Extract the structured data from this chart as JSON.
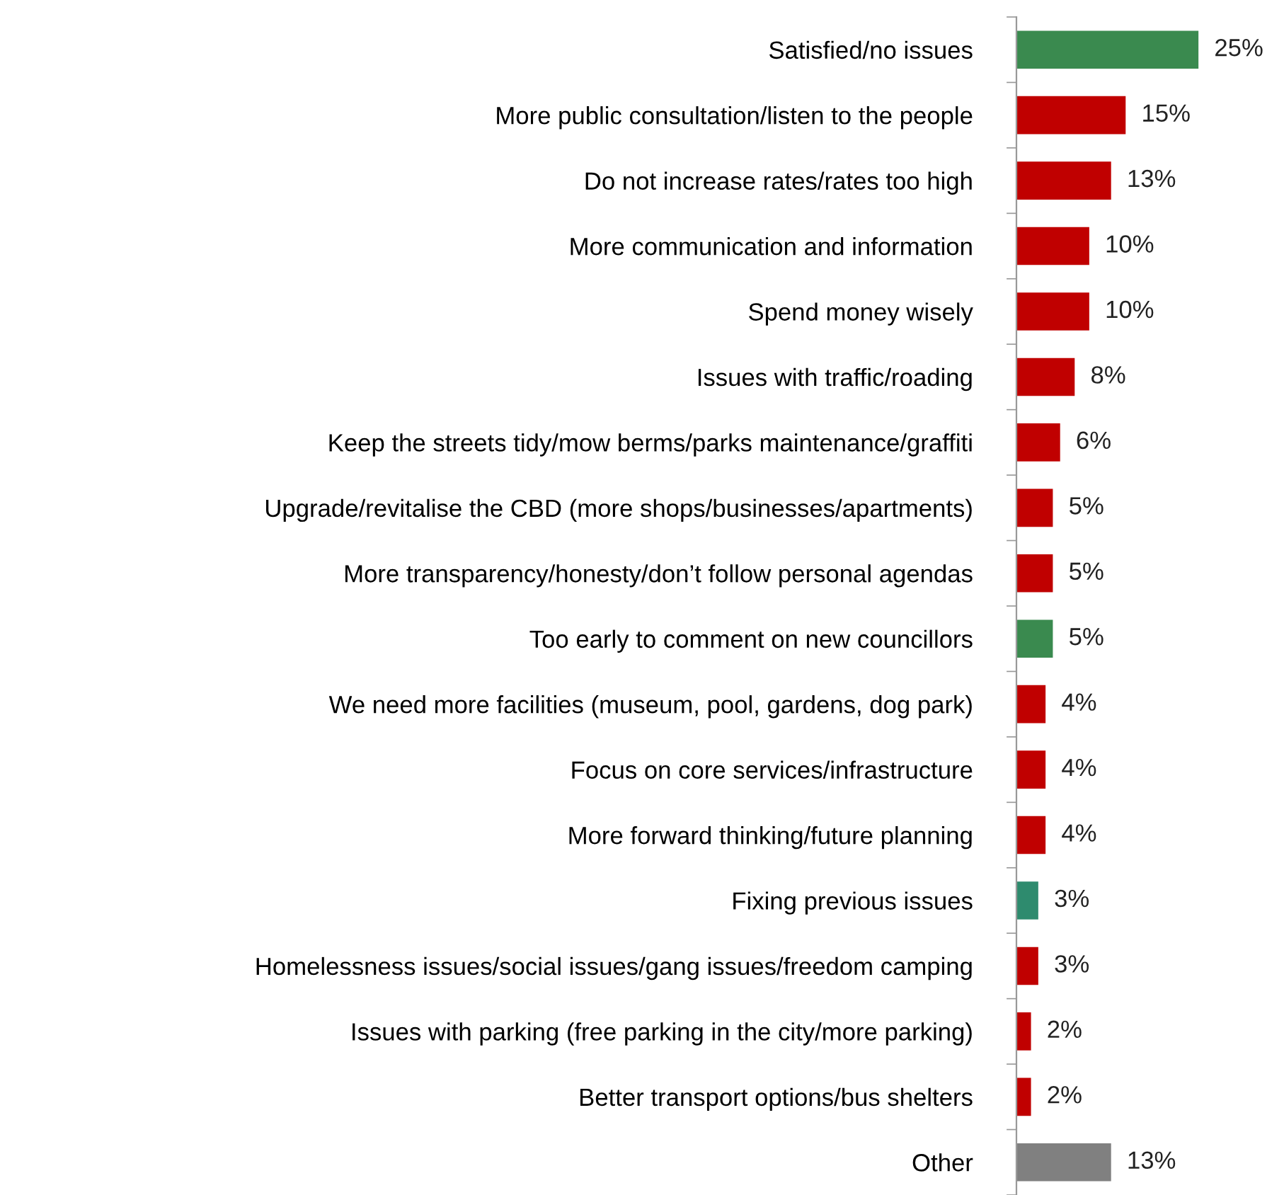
{
  "chart_data": {
    "type": "bar",
    "orientation": "horizontal",
    "categories": [
      "Satisfied/no issues",
      "More public consultation/listen to the people",
      "Do not increase rates/rates too high",
      "More communication and information",
      "Spend money wisely",
      "Issues with traffic/roading",
      "Keep the streets tidy/mow berms/parks maintenance/graffiti",
      "Upgrade/revitalise the CBD (more shops/businesses/apartments)",
      "More transparency/honesty/don’t follow personal agendas",
      "Too early to comment on new councillors",
      "We need more facilities (museum, pool, gardens, dog park)",
      "Focus on core services/infrastructure",
      "More forward thinking/future planning",
      "Fixing previous issues",
      "Homelessness issues/social issues/gang issues/freedom camping",
      "Issues with parking (free parking in the city/more parking)",
      "Better transport options/bus shelters",
      "Other"
    ],
    "values": [
      25,
      15,
      13,
      10,
      10,
      8,
      6,
      5,
      5,
      5,
      4,
      4,
      4,
      3,
      3,
      2,
      2,
      13
    ],
    "value_labels": [
      "25%",
      "15%",
      "13%",
      "10%",
      "10%",
      "8%",
      "6%",
      "5%",
      "5%",
      "5%",
      "4%",
      "4%",
      "4%",
      "3%",
      "3%",
      "2%",
      "2%",
      "13%"
    ],
    "colors": [
      "#3a8a4f",
      "#c00000",
      "#c00000",
      "#c00000",
      "#c00000",
      "#c00000",
      "#c00000",
      "#c00000",
      "#c00000",
      "#3a8a4f",
      "#c00000",
      "#c00000",
      "#c00000",
      "#2e8b6e",
      "#c00000",
      "#c00000",
      "#c00000",
      "#808080"
    ],
    "grid": false,
    "legend": false
  }
}
